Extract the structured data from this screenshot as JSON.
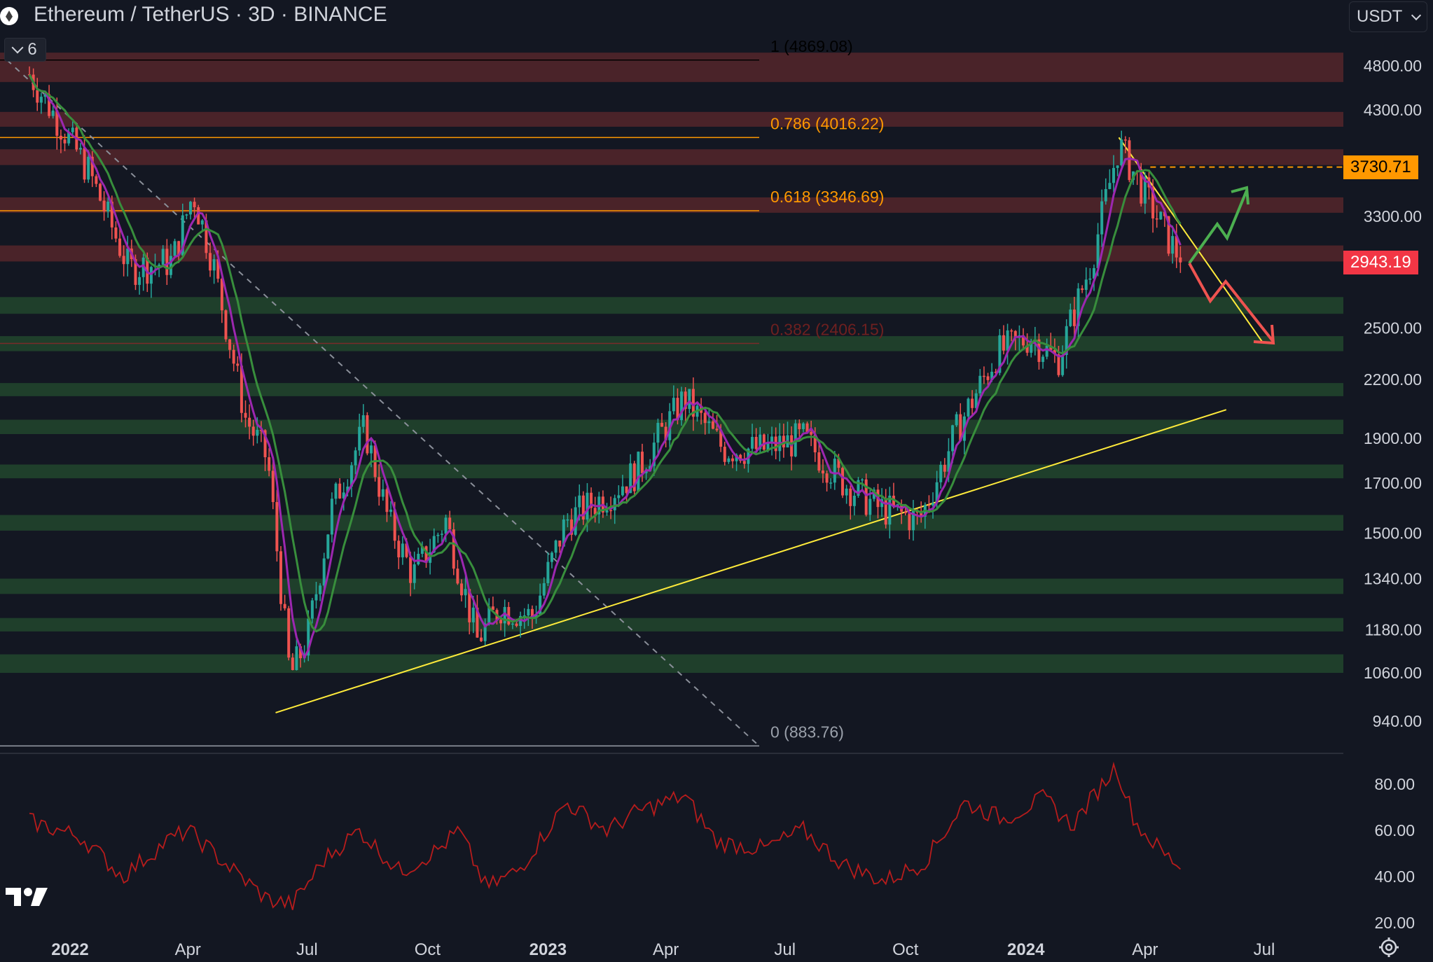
{
  "header": {
    "title": "Ethereum / TetherUS · 3D · BINANCE",
    "indicator_count": "6",
    "currency": "USDT"
  },
  "colors": {
    "background": "#131722",
    "up": "#26a69a",
    "down": "#ef5350",
    "ma_fast": "#9c27b0",
    "ma_slow": "#388e3c",
    "trendline": "#ffeb3b",
    "fib_orange": "#ff9800",
    "resistance_zone": "#4a2329",
    "support_zone": "#1f3f2b",
    "rsi": "#b71c1c"
  },
  "chart_data": [
    {
      "type": "candlestick",
      "x": [
        "2021-12-01",
        "2022-01-15",
        "2022-02-15",
        "2022-03-20",
        "2022-04-05",
        "2022-04-20",
        "2022-05-15",
        "2022-06-01",
        "2022-06-18",
        "2022-07-01",
        "2022-07-20",
        "2022-08-14",
        "2022-09-01",
        "2022-09-20",
        "2022-10-15",
        "2022-11-08",
        "2022-11-25",
        "2022-12-20",
        "2023-01-15",
        "2023-02-15",
        "2023-03-10",
        "2023-04-15",
        "2023-05-15",
        "2023-06-15",
        "2023-07-15",
        "2023-08-15",
        "2023-09-10",
        "2023-10-12",
        "2023-11-10",
        "2023-12-10",
        "2024-01-05",
        "2024-01-25",
        "2024-02-20",
        "2024-03-12",
        "2024-04-05",
        "2024-04-20",
        "2024-04-30"
      ],
      "close": [
        4700,
        3700,
        2900,
        2950,
        3500,
        2950,
        2000,
        1800,
        1050,
        1150,
        1600,
        1950,
        1550,
        1350,
        1550,
        1150,
        1250,
        1220,
        1550,
        1650,
        1750,
        2100,
        1850,
        1850,
        1900,
        1700,
        1600,
        1550,
        1950,
        2350,
        2450,
        2300,
        2950,
        3950,
        3400,
        3100,
        2943.19
      ],
      "fib_levels": [
        {
          "level": "1",
          "label": "1 (4869.08)",
          "price": 4869.08
        },
        {
          "level": "0.786",
          "label": "0.786 (4016.22)",
          "price": 4016.22
        },
        {
          "level": "0.618",
          "label": "0.618 (3346.69)",
          "price": 3346.69
        },
        {
          "level": "0.382",
          "label": "0.382 (2406.15)",
          "price": 2406.15
        },
        {
          "level": "0",
          "label": "0 (883.76)",
          "price": 883.76
        }
      ],
      "resistance_zones": [
        [
          4610,
          4960
        ],
        [
          4125,
          4280
        ],
        [
          3750,
          3900
        ],
        [
          3330,
          3460
        ],
        [
          2950,
          3070
        ]
      ],
      "support_zones": [
        [
          2590,
          2700
        ],
        [
          2360,
          2450
        ],
        [
          2110,
          2180
        ],
        [
          1920,
          1990
        ],
        [
          1720,
          1780
        ],
        [
          1510,
          1570
        ],
        [
          1290,
          1340
        ],
        [
          1175,
          1215
        ],
        [
          1060,
          1110
        ]
      ],
      "trendlines": [
        {
          "name": "ascending support",
          "from": [
            "2022-06-07",
            960
          ],
          "to": [
            "2024-06-02",
            2040
          ]
        },
        {
          "name": "descending resistance",
          "from": [
            "2024-03-12",
            4016
          ],
          "to": [
            "2024-06-30",
            2410
          ]
        }
      ],
      "current_price": 2943.19,
      "marked_price": 3730.71,
      "y_ticks": [
        "4800.00",
        "4300.00",
        "3300.00",
        "2500.00",
        "2200.00",
        "1900.00",
        "1700.00",
        "1500.00",
        "1340.00",
        "1180.00",
        "1060.00",
        "940.00"
      ],
      "x_ticks": [
        "2022",
        "Apr",
        "Jul",
        "Oct",
        "2023",
        "Apr",
        "Jul",
        "Oct",
        "2024",
        "Apr",
        "Jul"
      ],
      "y_scale": "log"
    },
    {
      "type": "line",
      "x": [
        "2021-12-01",
        "2022-01-10",
        "2022-02-10",
        "2022-03-15",
        "2022-04-01",
        "2022-05-01",
        "2022-06-01",
        "2022-06-20",
        "2022-07-15",
        "2022-08-10",
        "2022-09-10",
        "2022-10-10",
        "2022-10-25",
        "2022-11-15",
        "2022-12-10",
        "2023-01-15",
        "2023-02-15",
        "2023-03-10",
        "2023-04-15",
        "2023-05-10",
        "2023-06-15",
        "2023-07-15",
        "2023-08-15",
        "2023-09-15",
        "2023-10-15",
        "2023-11-15",
        "2023-12-15",
        "2024-01-15",
        "2024-02-05",
        "2024-03-10",
        "2024-03-25",
        "2024-04-15",
        "2024-04-30"
      ],
      "series": [
        {
          "values": [
            64,
            57,
            40,
            55,
            60,
            45,
            30,
            28,
            48,
            60,
            42,
            52,
            60,
            35,
            43,
            72,
            60,
            68,
            75,
            55,
            52,
            60,
            45,
            38,
            46,
            72,
            65,
            74,
            62,
            88,
            63,
            50,
            44
          ]
        }
      ],
      "y_ticks": [
        "80.00",
        "60.00",
        "40.00",
        "20.00"
      ],
      "ylim": [
        16,
        88
      ]
    }
  ]
}
